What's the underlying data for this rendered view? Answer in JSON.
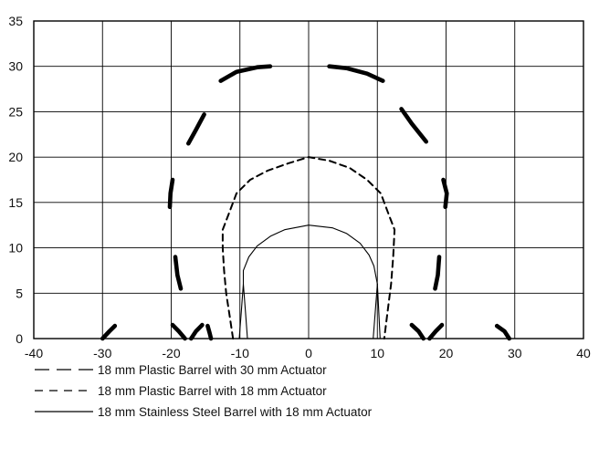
{
  "chart_data": {
    "type": "line",
    "title": "",
    "xlabel": "",
    "ylabel": "",
    "xlim": [
      -40,
      40
    ],
    "ylim": [
      0,
      35
    ],
    "x_ticks": [
      -40,
      -30,
      -20,
      -10,
      0,
      10,
      20,
      30,
      40
    ],
    "y_ticks": [
      0,
      5,
      10,
      15,
      20,
      25,
      30,
      35
    ],
    "grid": true,
    "legend_placement": "bottom-left",
    "series": [
      {
        "name": "18 mm Plastic Barrel with 30 mm Actuator",
        "style": "long-dash",
        "color": "#000000",
        "segments": [
          [
            [
              -30,
              0
            ],
            [
              -29,
              0.8
            ],
            [
              -28.2,
              1.4
            ]
          ],
          [
            [
              -19.8,
              1.5
            ],
            [
              -18.9,
              0.8
            ],
            [
              -18,
              0
            ]
          ],
          [
            [
              -17.1,
              0
            ],
            [
              -16.4,
              0.8
            ],
            [
              -15.5,
              1.5
            ]
          ],
          [
            [
              -14.7,
              1.4
            ],
            [
              -14.4,
              0.6
            ],
            [
              -14.2,
              0
            ]
          ],
          [
            [
              -18.6,
              5.5
            ],
            [
              -19.1,
              7
            ],
            [
              -19.4,
              9
            ]
          ],
          [
            [
              -20.2,
              14.5
            ],
            [
              -20.1,
              16
            ],
            [
              -19.8,
              17.5
            ]
          ],
          [
            [
              -17.5,
              21.5
            ],
            [
              -16.4,
              23
            ],
            [
              -15.2,
              24.7
            ]
          ],
          [
            [
              -12.8,
              28.4
            ],
            [
              -10.5,
              29.4
            ],
            [
              -7.5,
              29.9
            ],
            [
              -5.6,
              30
            ]
          ],
          [
            [
              3,
              30
            ],
            [
              5.5,
              29.8
            ],
            [
              8.5,
              29.2
            ],
            [
              10.8,
              28.4
            ]
          ],
          [
            [
              13.5,
              25.3
            ],
            [
              15,
              23.7
            ],
            [
              17.1,
              21.7
            ]
          ],
          [
            [
              19.6,
              17.5
            ],
            [
              20.1,
              16
            ],
            [
              19.9,
              14.5
            ]
          ],
          [
            [
              19,
              9
            ],
            [
              18.8,
              7
            ],
            [
              18.4,
              5.5
            ]
          ],
          [
            [
              15,
              1.5
            ],
            [
              16,
              0.8
            ],
            [
              16.7,
              0
            ]
          ],
          [
            [
              17.6,
              0
            ],
            [
              18.5,
              0.8
            ],
            [
              19.4,
              1.5
            ]
          ],
          [
            [
              27.4,
              1.4
            ],
            [
              28.5,
              0.8
            ],
            [
              29.2,
              0
            ]
          ]
        ]
      },
      {
        "name": "18 mm Plastic Barrel with 18 mm Actuator",
        "style": "short-dash",
        "color": "#000000",
        "segments": [
          [
            [
              -11,
              0
            ],
            [
              -11.5,
              2.5
            ],
            [
              -12,
              5
            ],
            [
              -12.3,
              7.5
            ],
            [
              -12.5,
              10
            ],
            [
              -12.5,
              12
            ],
            [
              -11.5,
              14
            ],
            [
              -10.5,
              16
            ],
            [
              -8.5,
              17.5
            ],
            [
              -6,
              18.5
            ],
            [
              -3,
              19.3
            ],
            [
              0,
              20
            ],
            [
              3,
              19.6
            ],
            [
              6,
              18.8
            ],
            [
              8.5,
              17.5
            ],
            [
              10.5,
              16
            ],
            [
              11.5,
              14
            ],
            [
              12.5,
              12
            ],
            [
              12.3,
              9
            ],
            [
              12,
              6
            ],
            [
              11.5,
              3
            ],
            [
              11,
              0
            ]
          ]
        ]
      },
      {
        "name": "18 mm Stainless Steel Barrel with 18 mm Actuator",
        "style": "solid",
        "color": "#000000",
        "segments": [
          [
            [
              -9.5,
              6
            ],
            [
              -9.5,
              7.5
            ],
            [
              -8.7,
              9
            ],
            [
              -7.5,
              10.2
            ],
            [
              -5.5,
              11.3
            ],
            [
              -3.5,
              12
            ],
            [
              0,
              12.5
            ],
            [
              3.5,
              12.2
            ],
            [
              5.5,
              11.6
            ],
            [
              7.5,
              10.5
            ],
            [
              8.8,
              9.2
            ],
            [
              9.5,
              8
            ],
            [
              10,
              6
            ]
          ],
          [
            [
              -9.5,
              6
            ],
            [
              -9.2,
              3
            ],
            [
              -8.9,
              0
            ]
          ],
          [
            [
              -9.5,
              6
            ],
            [
              -9.8,
              3
            ],
            [
              -10.1,
              0
            ]
          ],
          [
            [
              10,
              6
            ],
            [
              9.7,
              3
            ],
            [
              9.4,
              0
            ]
          ],
          [
            [
              10,
              6
            ],
            [
              10.2,
              3
            ],
            [
              10.4,
              0
            ]
          ]
        ]
      }
    ]
  }
}
